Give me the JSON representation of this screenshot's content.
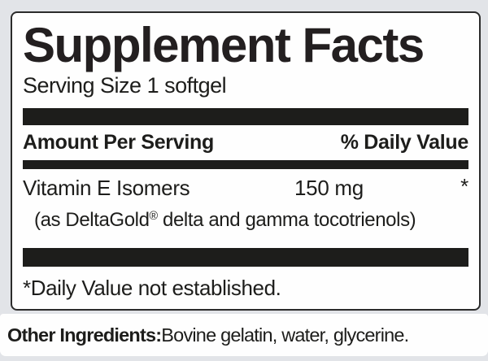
{
  "colors": {
    "page_bg": "#e2e4e8",
    "panel_bg": "#fefefe",
    "ink": "#1d1d1b",
    "border": "#2b2b2b"
  },
  "panel": {
    "title": "Supplement Facts",
    "serving_size": "Serving Size 1 softgel",
    "columns": {
      "amount_header": "Amount Per Serving",
      "dv_header": "% Daily Value"
    },
    "rows": [
      {
        "name": "Vitamin E Isomers",
        "amount": "150 mg",
        "daily_value": "*",
        "detail_prefix": "(as DeltaGold",
        "detail_mark": "®",
        "detail_suffix": " delta and gamma tocotrienols)"
      }
    ],
    "footnote": "*Daily Value not established."
  },
  "other_ingredients": {
    "label": "Other Ingredients:",
    "value": " Bovine gelatin, water, glycerine."
  }
}
